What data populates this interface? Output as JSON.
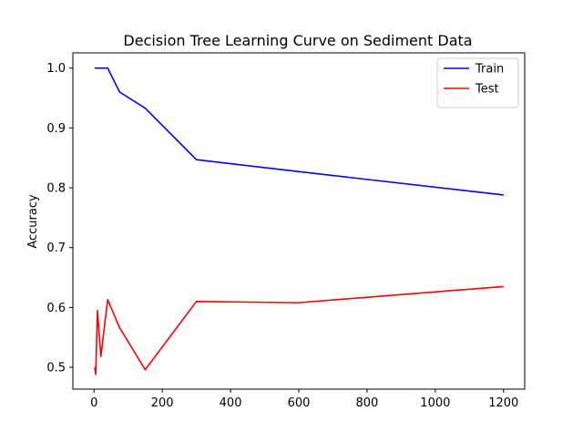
{
  "chart_data": {
    "type": "line",
    "title": "Decision Tree Learning Curve on Sediment Data",
    "xlabel": "",
    "ylabel": "Accuracy",
    "xlim": [
      -62,
      1262
    ],
    "ylim": [
      0.4635,
      1.0255
    ],
    "xticks": [
      0,
      200,
      400,
      600,
      800,
      1000,
      1200
    ],
    "yticks": [
      0.5,
      0.6,
      0.7,
      0.8,
      0.9,
      1.0
    ],
    "xtick_labels": [
      "0",
      "200",
      "400",
      "600",
      "800",
      "1000",
      "1200"
    ],
    "ytick_labels": [
      "0.5",
      "0.6",
      "0.7",
      "0.8",
      "0.9",
      "1.0"
    ],
    "grid": false,
    "legend_position": "upper-right",
    "series": [
      {
        "name": "Train",
        "color": "#0000ff",
        "x": [
          2,
          5,
          10,
          20,
          40,
          75,
          150,
          300,
          600,
          1200
        ],
        "y": [
          1.0,
          1.0,
          1.0,
          1.0,
          1.0,
          0.96,
          0.933,
          0.847,
          0.827,
          0.788
        ]
      },
      {
        "name": "Test",
        "color": "#ff0000",
        "x": [
          2,
          5,
          10,
          20,
          40,
          75,
          150,
          300,
          600,
          1200
        ],
        "y": [
          0.5,
          0.488,
          0.595,
          0.518,
          0.613,
          0.566,
          0.496,
          0.61,
          0.608,
          0.635
        ]
      }
    ]
  }
}
